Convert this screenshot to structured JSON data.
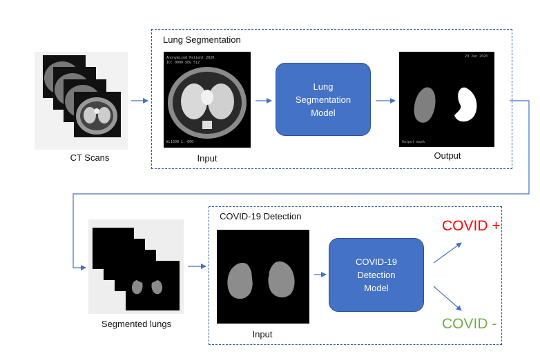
{
  "stage1": {
    "title": "Lung Segmentation",
    "input_label": "Input",
    "model_lines": [
      "Lung",
      "Segmentation",
      "Model"
    ],
    "output_label": "Output"
  },
  "ct_scans_label": "CT Scans",
  "stage2": {
    "title": "COVID-19 Detection",
    "input_label": "Input",
    "model_lines": [
      "COVID-19",
      "Detection",
      "Model"
    ],
    "positive": "COVID +",
    "negative": "COVID -"
  },
  "segmented_label": "Segmented lungs",
  "colors": {
    "dash_border": "#2f5597",
    "model_fill": "#4472c4",
    "arrow": "#4472c4",
    "positive": "#ff0000",
    "negative": "#70ad47"
  }
}
